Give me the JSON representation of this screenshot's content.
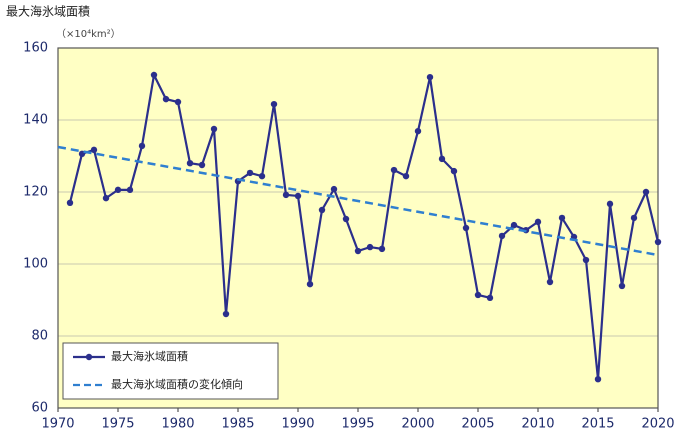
{
  "chart_data": {
    "type": "line",
    "title": "最大海氷域面積",
    "y_unit": "（×10⁴km²）",
    "xlim": [
      1970,
      2020
    ],
    "xticks": [
      1970,
      1975,
      1980,
      1985,
      1990,
      1995,
      2000,
      2005,
      2010,
      2015,
      2020
    ],
    "ylim": [
      60,
      160
    ],
    "yticks": [
      60,
      80,
      100,
      120,
      140,
      160
    ],
    "grid": true,
    "legend": "lower left",
    "series": [
      {
        "name": "最大海氷域面積",
        "color": "#2b2f8c",
        "style": "solid-marker",
        "x": [
          1971,
          1972,
          1973,
          1974,
          1975,
          1976,
          1977,
          1978,
          1979,
          1980,
          1981,
          1982,
          1983,
          1984,
          1985,
          1986,
          1987,
          1988,
          1989,
          1990,
          1991,
          1992,
          1993,
          1994,
          1995,
          1996,
          1997,
          1998,
          1999,
          2000,
          2001,
          2002,
          2003,
          2004,
          2005,
          2006,
          2007,
          2008,
          2009,
          2010,
          2011,
          2012,
          2013,
          2014,
          2015,
          2016,
          2017,
          2018,
          2019,
          2020
        ],
        "values": [
          117,
          130.6,
          131.7,
          118.3,
          120.6,
          120.6,
          132.8,
          152.5,
          145.8,
          145,
          128,
          127.5,
          137.5,
          86.1,
          123,
          125.3,
          124.4,
          144.4,
          119.2,
          118.9,
          94.4,
          115,
          120.8,
          112.5,
          103.6,
          104.7,
          104.2,
          126.1,
          124.4,
          136.9,
          151.9,
          129.2,
          125.8,
          110,
          91.4,
          90.6,
          107.8,
          110.8,
          109.4,
          111.7,
          95,
          112.8,
          107.5,
          101.1,
          68,
          116.7,
          93.9,
          112.8,
          120,
          106.1
        ]
      },
      {
        "name": "最大海氷域面積の変化傾向",
        "color": "#2f7fd0",
        "style": "dashed",
        "x": [
          1970,
          2020
        ],
        "values": [
          132.5,
          102.5
        ]
      }
    ]
  }
}
